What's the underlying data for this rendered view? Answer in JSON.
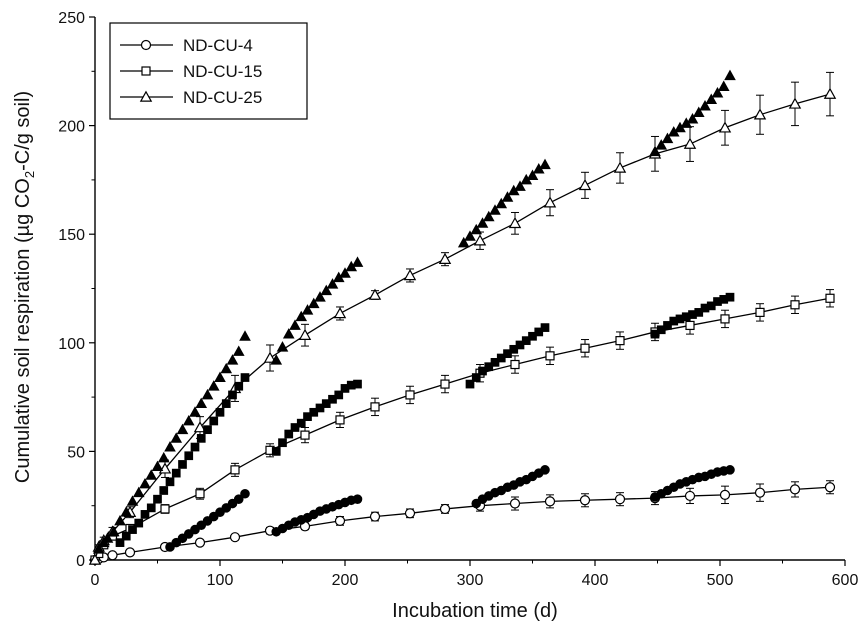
{
  "chart_data": {
    "type": "scatter",
    "xlabel": "Incubation time (d)",
    "ylabel_parts": [
      "Cumulative soil respiration (µg CO",
      "2",
      "-C/g soil)"
    ],
    "xlim": [
      0,
      600
    ],
    "ylim": [
      0,
      250
    ],
    "x_ticks": [
      0,
      100,
      200,
      300,
      400,
      500,
      600
    ],
    "y_ticks": [
      0,
      50,
      100,
      150,
      200,
      250
    ],
    "grid": false,
    "legend_position": "top-left",
    "colors": {
      "line": "#000000",
      "background": "#ffffff"
    },
    "series": [
      {
        "name": "ND-CU-4",
        "marker": "circle",
        "x": [
          0,
          3,
          7,
          14,
          28,
          56,
          84,
          112,
          140,
          168,
          196,
          224,
          252,
          280,
          308,
          336,
          364,
          392,
          420,
          448,
          476,
          504,
          532,
          560,
          588
        ],
        "y": [
          0,
          0.5,
          1.2,
          2.2,
          3.5,
          6,
          8,
          10.5,
          13.5,
          15.5,
          18,
          20,
          21.5,
          23.5,
          25,
          26,
          27,
          27.5,
          28,
          28.5,
          29.5,
          30,
          31,
          32.5,
          33.5
        ],
        "err": [
          0,
          0.2,
          0.3,
          0.5,
          0.8,
          1,
          1,
          1.2,
          1.5,
          1.5,
          2,
          2,
          2,
          2,
          2.5,
          3,
          3,
          3,
          3,
          3,
          3.5,
          4,
          4,
          3.5,
          3
        ]
      },
      {
        "name": "ND-CU-15",
        "marker": "square",
        "x": [
          0,
          3,
          7,
          14,
          28,
          56,
          84,
          112,
          140,
          168,
          196,
          224,
          252,
          280,
          308,
          336,
          364,
          392,
          420,
          448,
          476,
          504,
          532,
          560,
          588
        ],
        "y": [
          0,
          3,
          7,
          11,
          14.5,
          23.5,
          30.5,
          41.5,
          50.5,
          57.5,
          64.5,
          70.5,
          76,
          81,
          86,
          90,
          94,
          97.5,
          101,
          105,
          108,
          111,
          114,
          117.5,
          120.5
        ],
        "err": [
          0,
          0.5,
          0.8,
          1,
          1.5,
          2,
          2.5,
          3,
          3,
          3.5,
          3.5,
          4,
          4,
          4,
          4,
          4,
          4,
          4,
          4,
          4,
          4,
          4,
          4,
          4,
          4
        ]
      },
      {
        "name": "ND-CU-25",
        "marker": "triangle",
        "x": [
          0,
          3,
          7,
          14,
          28,
          56,
          84,
          112,
          140,
          168,
          196,
          224,
          252,
          280,
          308,
          336,
          364,
          392,
          420,
          448,
          476,
          504,
          532,
          560,
          588
        ],
        "y": [
          0,
          6,
          9,
          13,
          22,
          42,
          61,
          79,
          93,
          103.5,
          113.5,
          122,
          131,
          138.5,
          147,
          155,
          164.5,
          172.5,
          180.5,
          187,
          191.5,
          199,
          205,
          210,
          214.5
        ],
        "err": [
          0,
          1,
          1.5,
          2,
          2.5,
          4,
          5,
          6,
          6,
          5,
          3,
          2,
          3,
          3,
          4,
          5,
          6,
          6,
          7,
          8,
          8,
          8,
          9,
          10,
          10
        ]
      },
      {
        "name": "",
        "marker": "filled-circle",
        "segments": [
          {
            "x": [
              60,
              65,
              70,
              75,
              80,
              85,
              90,
              95,
              100,
              105,
              110,
              115,
              120
            ],
            "y": [
              6,
              8,
              10,
              12,
              14,
              16,
              18,
              20,
              22,
              24,
              26,
              28,
              30.5
            ]
          },
          {
            "x": [
              145,
              150,
              155,
              160,
              165,
              170,
              175,
              180,
              185,
              190,
              195,
              200,
              205,
              210
            ],
            "y": [
              13,
              14.5,
              16,
              17.5,
              18.5,
              19.5,
              21,
              22.5,
              23.5,
              24.5,
              25.5,
              26.5,
              27.5,
              28
            ]
          },
          {
            "x": [
              305,
              310,
              315,
              320,
              325,
              330,
              335,
              340,
              345,
              350,
              355,
              360
            ],
            "y": [
              26,
              28,
              29.5,
              31,
              32,
              33.5,
              34.5,
              36,
              37,
              38.5,
              40,
              41.5
            ]
          },
          {
            "x": [
              448,
              453,
              458,
              463,
              468,
              473,
              478,
              483,
              488,
              493,
              498,
              503,
              508
            ],
            "y": [
              29,
              30.5,
              32,
              33.5,
              35,
              36,
              37,
              38,
              38.5,
              39.5,
              40.5,
              41,
              41.5
            ]
          }
        ]
      },
      {
        "name": "",
        "marker": "filled-square",
        "segments": [
          {
            "x": [
              20,
              25,
              30,
              35,
              40,
              45,
              50,
              55,
              60,
              65,
              70,
              75,
              80,
              85,
              90,
              95,
              100,
              105,
              110,
              115,
              120
            ],
            "y": [
              8,
              11,
              14,
              17,
              21,
              24,
              28,
              32,
              36,
              40,
              44,
              48,
              52,
              56,
              60,
              64,
              68,
              72,
              76,
              80,
              84
            ]
          },
          {
            "x": [
              145,
              150,
              155,
              160,
              165,
              170,
              175,
              180,
              185,
              190,
              195,
              200,
              205,
              210
            ],
            "y": [
              50,
              54,
              58,
              61,
              63,
              66,
              68,
              70,
              72,
              74,
              76,
              79,
              80.5,
              81
            ]
          },
          {
            "x": [
              300,
              305,
              310,
              315,
              320,
              325,
              330,
              335,
              340,
              345,
              350,
              355,
              360
            ],
            "y": [
              81,
              84,
              87,
              89,
              91,
              93,
              95,
              97,
              99,
              101,
              103,
              105,
              107
            ]
          },
          {
            "x": [
              448,
              453,
              458,
              463,
              468,
              473,
              478,
              483,
              488,
              493,
              498,
              503,
              508
            ],
            "y": [
              104,
              106,
              108,
              110,
              111,
              112,
              113,
              114,
              116,
              117,
              119,
              120,
              121
            ]
          }
        ]
      },
      {
        "name": "",
        "marker": "filled-triangle",
        "segments": [
          {
            "x": [
              3,
              7,
              10,
              15,
              20,
              25,
              30,
              35,
              40,
              45,
              50,
              55,
              60,
              65,
              70,
              75,
              80,
              85,
              90,
              95,
              100,
              105,
              110,
              115,
              120
            ],
            "y": [
              5,
              8,
              10,
              13,
              18,
              22,
              27,
              31,
              35,
              39,
              43,
              47,
              52,
              56,
              60,
              64,
              68,
              72,
              76,
              80,
              84,
              88,
              92,
              96,
              103
            ]
          },
          {
            "x": [
              145,
              150,
              155,
              160,
              165,
              170,
              175,
              180,
              185,
              190,
              195,
              200,
              205,
              210
            ],
            "y": [
              92,
              98,
              104,
              108,
              112,
              115,
              118,
              121,
              124,
              127,
              130,
              132,
              135,
              137
            ]
          },
          {
            "x": [
              295,
              300,
              305,
              310,
              315,
              320,
              325,
              330,
              335,
              340,
              345,
              350,
              355,
              360
            ],
            "y": [
              146,
              149,
              152,
              155,
              158,
              161,
              164,
              167,
              170,
              172,
              175,
              177,
              180,
              182
            ]
          },
          {
            "x": [
              448,
              453,
              458,
              463,
              468,
              473,
              478,
              483,
              488,
              493,
              498,
              503,
              508
            ],
            "y": [
              188,
              191,
              194,
              197,
              199,
              201,
              203,
              206,
              209,
              212,
              215,
              218,
              223
            ]
          }
        ]
      }
    ]
  }
}
